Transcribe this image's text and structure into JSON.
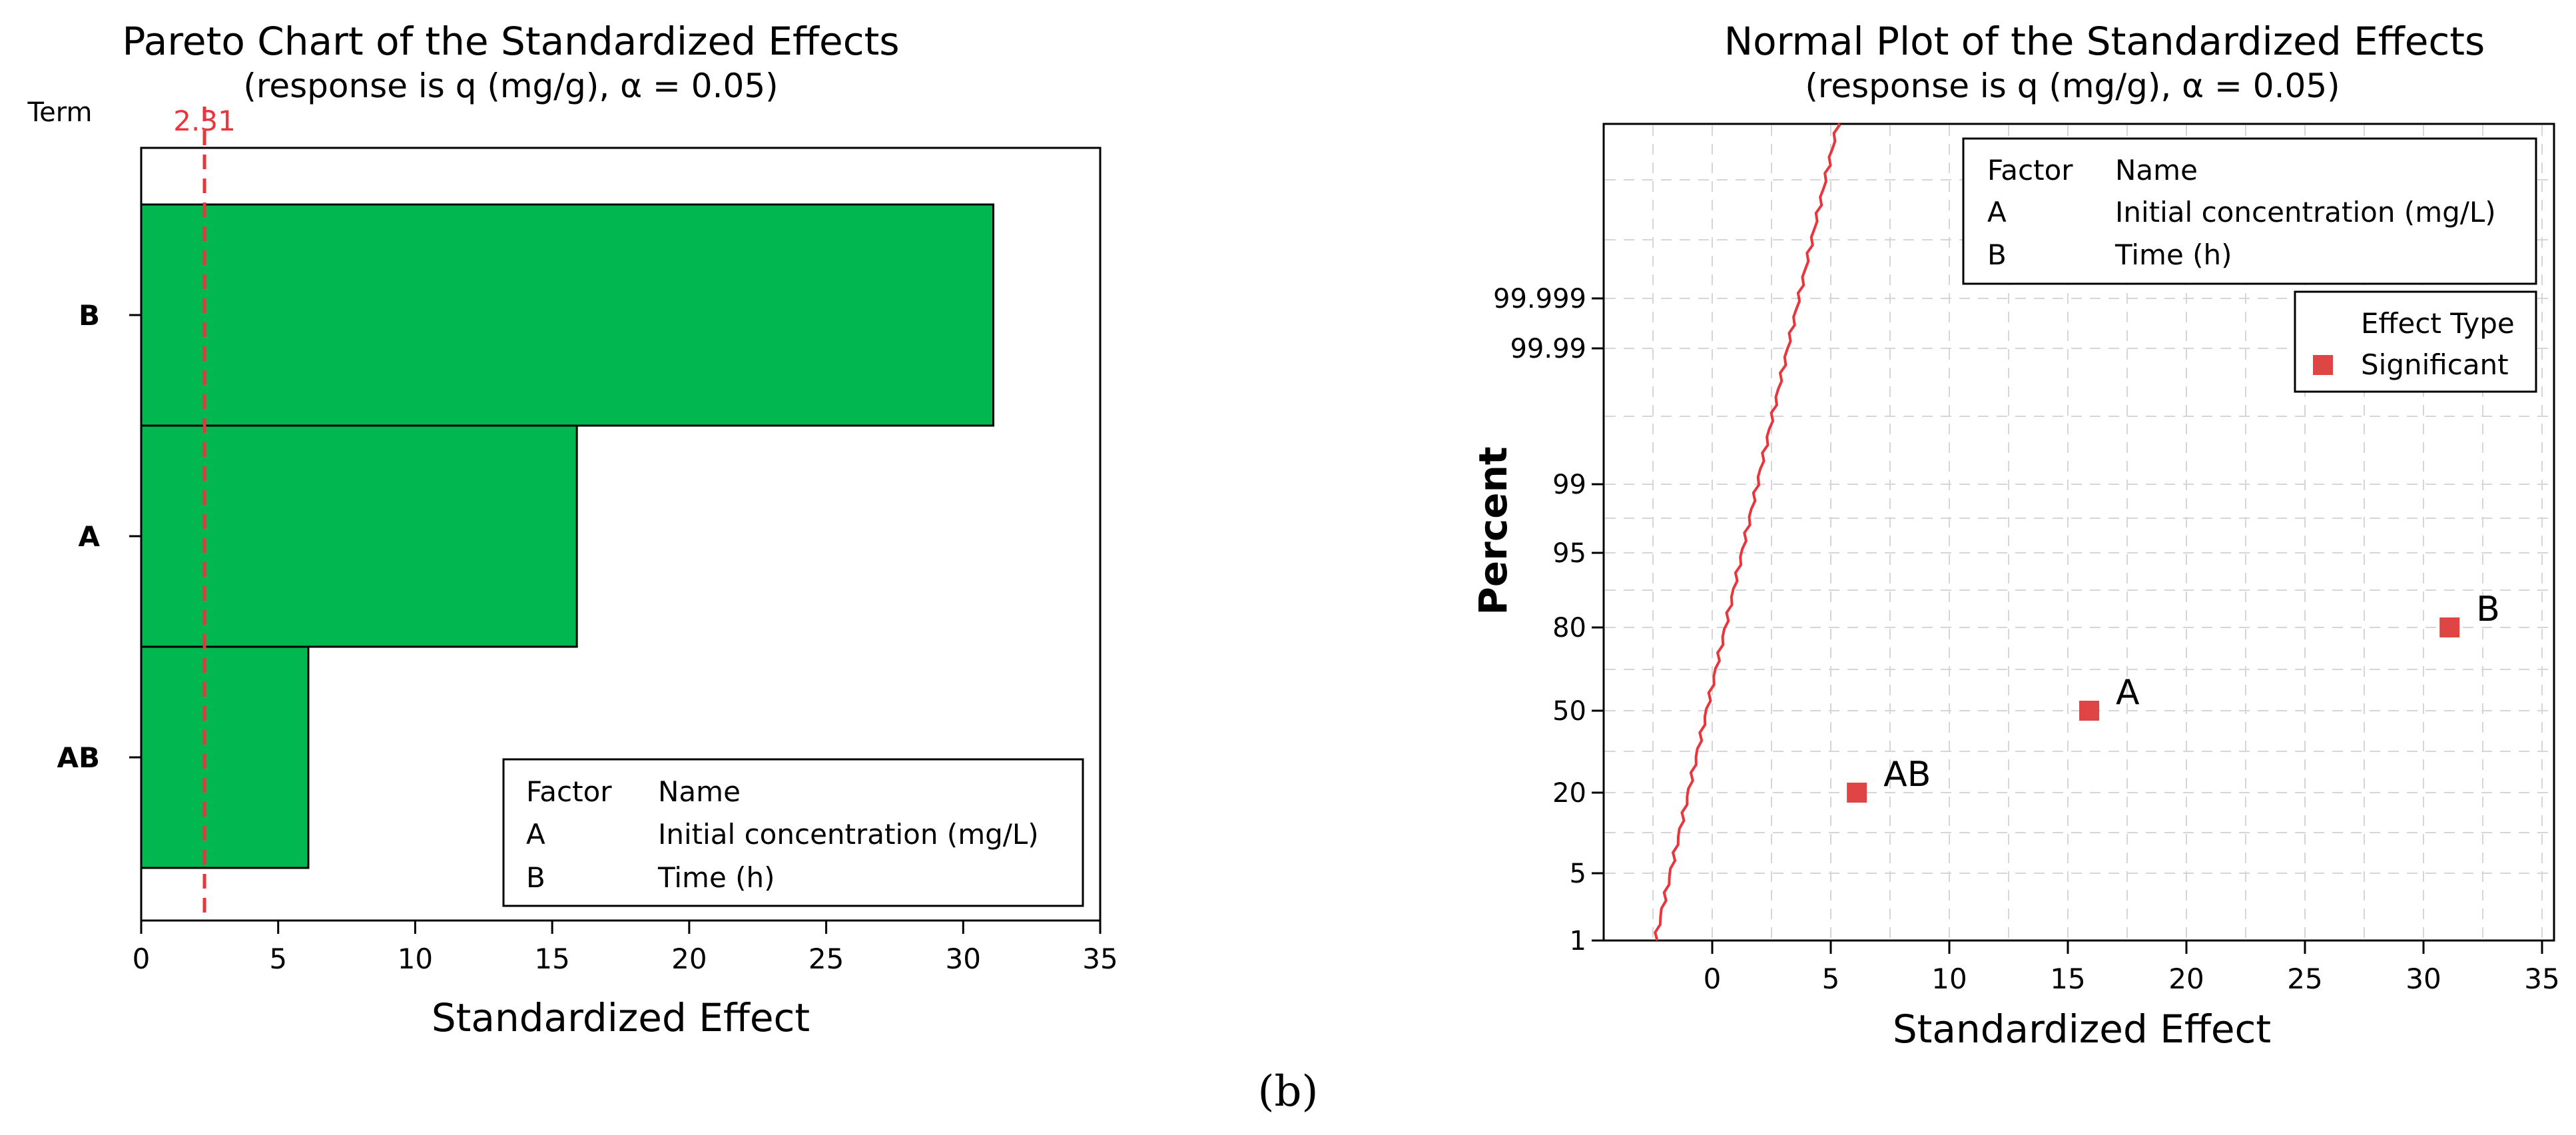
{
  "figure_caption": "(b)",
  "colors": {
    "bar_fill": "#00b84f",
    "reference_line": "#e8363c",
    "marker": "#e04545",
    "grid": "#d6d6d6",
    "axis": "#000000"
  },
  "chart_data": [
    {
      "type": "bar",
      "orientation": "horizontal",
      "title": "Pareto Chart of the Standardized Effects",
      "subtitle": "(response is q (mg/g), α = 0.05)",
      "xlabel": "Standardized Effect",
      "ylabel": "Term",
      "categories": [
        "B",
        "A",
        "AB"
      ],
      "values": [
        31.1,
        15.9,
        6.1
      ],
      "xlim": [
        0,
        35
      ],
      "xticks": [
        "0",
        "5",
        "10",
        "15",
        "20",
        "25",
        "30",
        "35"
      ],
      "reference_value": 2.31,
      "reference_label": "2.31",
      "legend": {
        "position": "bottom-right",
        "header": [
          "Factor",
          "Name"
        ],
        "rows": [
          [
            "A",
            "Initial concentration (mg/L)"
          ],
          [
            "B",
            "Time (h)"
          ]
        ]
      }
    },
    {
      "type": "scatter",
      "title": "Normal Plot of the Standardized Effects",
      "subtitle": "(response is q (mg/g), α = 0.05)",
      "xlabel": "Standardized Effect",
      "ylabel": "Percent",
      "xlim": [
        -5,
        35
      ],
      "xticks": [
        "0",
        "5",
        "10",
        "15",
        "20",
        "25",
        "30",
        "35"
      ],
      "yticks": [
        "1",
        "5",
        "20",
        "50",
        "80",
        "95",
        "99",
        "99.99",
        "99.999"
      ],
      "points": [
        {
          "label": "AB",
          "x": 6.1,
          "percent": 20
        },
        {
          "label": "A",
          "x": 15.9,
          "percent": 50
        },
        {
          "label": "B",
          "x": 31.1,
          "percent": 80
        }
      ],
      "reference_line": {
        "x_at_1_percent": -2.4,
        "x_at_99_percent": 1.9
      },
      "legend_factors": {
        "position": "top-right",
        "header": [
          "Factor",
          "Name"
        ],
        "rows": [
          [
            "A",
            "Initial concentration (mg/L)"
          ],
          [
            "B",
            "Time (h)"
          ]
        ]
      },
      "legend_effect": {
        "position": "right",
        "title": "Effect Type",
        "entries": [
          "Significant"
        ]
      }
    }
  ]
}
